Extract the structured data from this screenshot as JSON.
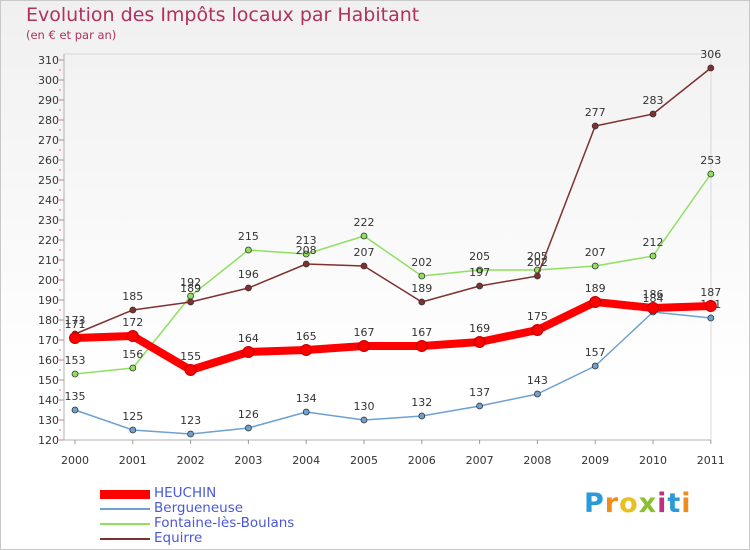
{
  "header": {
    "title": "Evolution des Impôts locaux par Habitant",
    "subtitle": "(en € et par an)"
  },
  "logo": {
    "text": "Proxiti",
    "letters": [
      "P",
      "r",
      "o",
      "x",
      "i",
      "t",
      "i"
    ],
    "colors": [
      "#2a9ad8",
      "#f08c1c",
      "#e8c020",
      "#8ac030",
      "#c03080",
      "#2a9ad8",
      "#f08c1c"
    ]
  },
  "chart_data": {
    "type": "line",
    "title": "Evolution des Impôts locaux par Habitant",
    "subtitle": "(en € et par an)",
    "xlabel": "",
    "ylabel": "",
    "x": [
      "2000",
      "2001",
      "2002",
      "2003",
      "2004",
      "2005",
      "2006",
      "2007",
      "2008",
      "2009",
      "2010",
      "2011"
    ],
    "ylim": [
      120,
      310
    ],
    "yticks": [
      120,
      130,
      140,
      150,
      160,
      170,
      180,
      190,
      200,
      210,
      220,
      230,
      240,
      250,
      260,
      270,
      280,
      290,
      300,
      310
    ],
    "grid": false,
    "legend_position": "bottom-left",
    "series": [
      {
        "name": "HEUCHIN",
        "color": "#ff0000",
        "values": [
          171,
          172,
          155,
          164,
          165,
          167,
          167,
          169,
          175,
          189,
          186,
          187
        ]
      },
      {
        "name": "Bergueneuse",
        "color": "#6ea0d0",
        "values": [
          135,
          125,
          123,
          126,
          134,
          130,
          132,
          137,
          143,
          157,
          184,
          181
        ]
      },
      {
        "name": "Fontaine-lès-Boulans",
        "color": "#90e060",
        "values": [
          153,
          156,
          192,
          215,
          213,
          222,
          202,
          205,
          205,
          207,
          212,
          253
        ]
      },
      {
        "name": "Equirre",
        "color": "#803030",
        "values": [
          173,
          185,
          189,
          196,
          208,
          207,
          189,
          197,
          202,
          277,
          283,
          306
        ]
      }
    ]
  }
}
